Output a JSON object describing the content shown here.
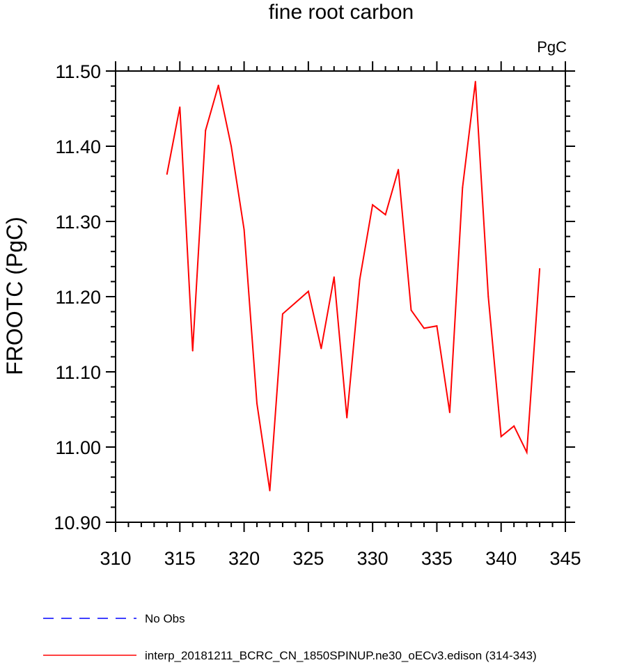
{
  "chart_data": {
    "type": "line",
    "title": "fine root carbon",
    "units_label": "PgC",
    "ylabel": "FROOTC  (PgC)",
    "xlabel": "",
    "xlim": [
      310,
      345
    ],
    "ylim": [
      10.9,
      11.5
    ],
    "x_ticks": [
      "310",
      "315",
      "320",
      "325",
      "330",
      "335",
      "340",
      "345"
    ],
    "y_ticks": [
      "10.90",
      "11.00",
      "11.10",
      "11.20",
      "11.30",
      "11.40",
      "11.50"
    ],
    "grid": false,
    "legend_position": "bottom-left",
    "series": [
      {
        "name": "interp_20181211_BCRC_CN_1850SPINUP.ne30_oECv3.edison (314-343)",
        "color": "#ff0000",
        "dash": "solid",
        "x": [
          314,
          315,
          316,
          317,
          318,
          319,
          320,
          321,
          322,
          323,
          324,
          325,
          326,
          327,
          328,
          329,
          330,
          331,
          332,
          333,
          334,
          335,
          336,
          337,
          338,
          339,
          340,
          341,
          342,
          343
        ],
        "y": [
          11.363,
          11.452,
          11.128,
          11.421,
          11.481,
          11.4,
          11.289,
          11.058,
          10.942,
          11.177,
          11.192,
          11.207,
          11.131,
          11.226,
          11.039,
          11.223,
          11.322,
          11.309,
          11.369,
          11.182,
          11.158,
          11.161,
          11.046,
          11.345,
          11.486,
          11.2,
          11.014,
          11.028,
          10.993,
          11.237
        ]
      }
    ],
    "legend": [
      {
        "label": "No Obs",
        "color": "#0000ff",
        "dash": "dashed"
      },
      {
        "label": "interp_20181211_BCRC_CN_1850SPINUP.ne30_oECv3.edison (314-343)",
        "color": "#ff0000",
        "dash": "solid"
      }
    ]
  }
}
